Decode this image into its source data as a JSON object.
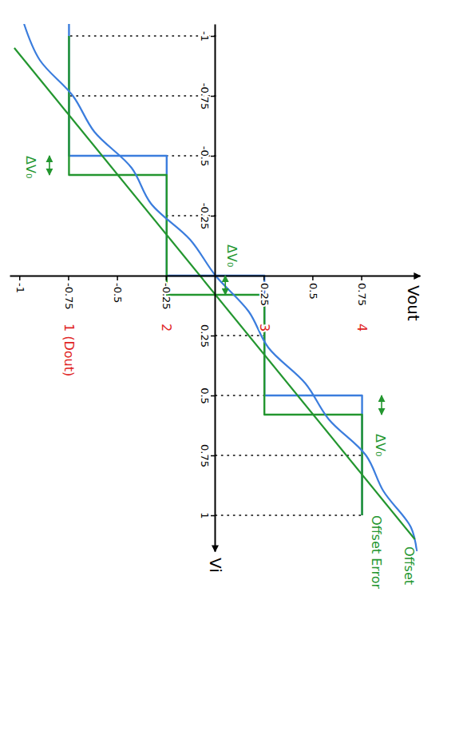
{
  "chart_data": {
    "type": "line",
    "x_label": "Vi",
    "y_label": "Vout",
    "xlim": [
      -1.05,
      1.15
    ],
    "ylim": [
      -1.05,
      1.05
    ],
    "xticks": [
      -1,
      -0.75,
      -0.5,
      -0.25,
      0.25,
      0.5,
      0.75,
      1
    ],
    "yticks": [
      -1,
      -0.75,
      -0.5,
      -0.25,
      0.25,
      0.5,
      0.75
    ],
    "grid": true,
    "series": [
      {
        "type": "step",
        "color": "#3b7ddd",
        "line_style": "solid",
        "x": [
          -1.05,
          -0.5,
          0,
          0.5,
          1
        ],
        "values": [
          -0.75,
          -0.25,
          0.25,
          0.75,
          0.75
        ]
      },
      {
        "type": "step",
        "color": "#23962f",
        "line_style": "solid",
        "x": [
          -1.0,
          -0.42,
          0.08,
          0.58,
          1
        ],
        "values": [
          -0.75,
          -0.25,
          0.25,
          0.75,
          0.75
        ]
      },
      {
        "type": "line",
        "color": "#3b7ddd",
        "line_style": "solid",
        "x": [
          -1.05,
          -0.9,
          -0.75,
          -0.6,
          -0.45,
          -0.3,
          -0.15,
          0,
          0.15,
          0.3,
          0.45,
          0.6,
          0.75,
          0.9,
          1.05,
          1.15
        ],
        "values": [
          -0.98,
          -0.9,
          -0.73,
          -0.62,
          -0.43,
          -0.33,
          -0.13,
          0.0,
          0.17,
          0.27,
          0.46,
          0.58,
          0.77,
          0.86,
          1.0,
          1.03
        ]
      },
      {
        "type": "line",
        "color": "#23962f",
        "line_style": "solid",
        "x": [
          -0.95,
          1.1
        ],
        "values": [
          -1.03,
          1.02
        ]
      }
    ],
    "dout_labels": [
      {
        "label": "1 (Dout)",
        "x": 0.2,
        "y": -0.75,
        "color": "#e02424"
      },
      {
        "label": "2",
        "x": 0.2,
        "y": -0.25,
        "color": "#e02424"
      },
      {
        "label": "3",
        "x": 0.2,
        "y": 0.25,
        "color": "#e02424"
      },
      {
        "label": "4",
        "x": 0.2,
        "y": 0.75,
        "color": "#e02424"
      }
    ],
    "annotations": [
      {
        "text": "ΔV₀",
        "x": -0.5,
        "y": -0.97,
        "arrow_x": [
          -0.5,
          -0.42
        ],
        "arrow_y": -0.85,
        "color": "#23962f"
      },
      {
        "text": "ΔV₀",
        "x": -0.13,
        "y": 0.06,
        "arrow_x": [
          0,
          0.08
        ],
        "arrow_y": 0.05,
        "color": "#23962f"
      },
      {
        "text": "ΔV₀",
        "x": 0.66,
        "y": 0.82,
        "arrow_x": [
          0.5,
          0.58
        ],
        "arrow_y": 0.85,
        "color": "#23962f"
      },
      {
        "text": "Offset",
        "x": 1.13,
        "y": 0.97,
        "color": "#23962f"
      },
      {
        "text": "Offset Error",
        "x": 1.0,
        "y": 0.8,
        "color": "#23962f"
      }
    ]
  }
}
